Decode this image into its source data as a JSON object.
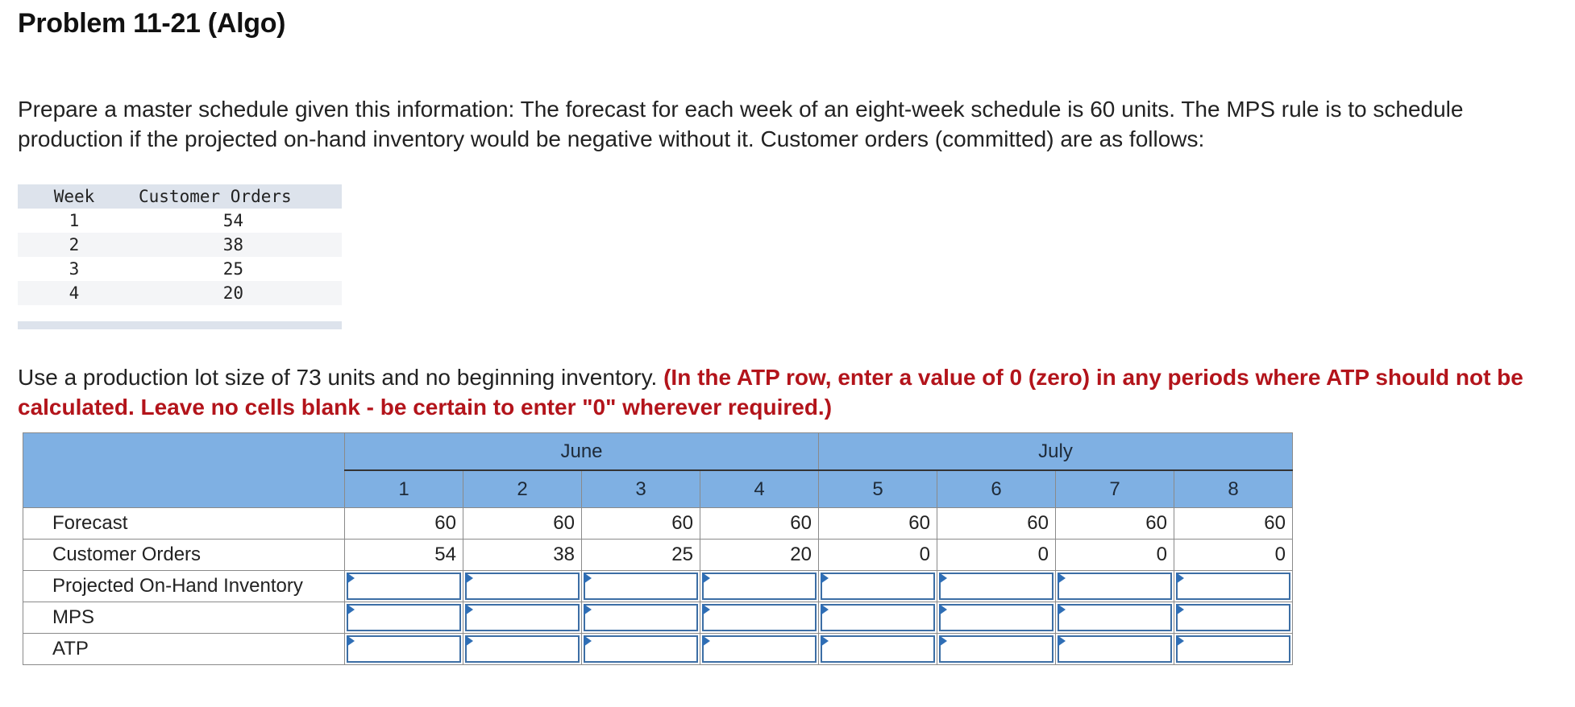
{
  "title": "Problem 11-21 (Algo)",
  "intro": "Prepare a master schedule given this information: The forecast for each week of an eight-week schedule is 60 units. The MPS rule is to schedule production if the projected on-hand inventory would be negative without it. Customer orders (committed) are as follows:",
  "orders_table": {
    "headers": [
      "Week",
      "Customer Orders"
    ],
    "rows": [
      {
        "week": "1",
        "orders": "54"
      },
      {
        "week": "2",
        "orders": "38"
      },
      {
        "week": "3",
        "orders": "25"
      },
      {
        "week": "4",
        "orders": "20"
      }
    ]
  },
  "instructions": {
    "plain": "Use a production lot size of 73 units and no beginning inventory. ",
    "emphasis": "(In the ATP row, enter a value of 0 (zero) in any periods where ATP should not be calculated. Leave no cells blank - be certain to enter \"0\" wherever required.)"
  },
  "grid": {
    "months": [
      "June",
      "July"
    ],
    "weeks": [
      "1",
      "2",
      "3",
      "4",
      "5",
      "6",
      "7",
      "8"
    ],
    "rows": {
      "forecast": {
        "label": "Forecast",
        "values": [
          "60",
          "60",
          "60",
          "60",
          "60",
          "60",
          "60",
          "60"
        ]
      },
      "orders": {
        "label": "Customer Orders",
        "values": [
          "54",
          "38",
          "25",
          "20",
          "0",
          "0",
          "0",
          "0"
        ]
      },
      "poh": {
        "label": "Projected On-Hand Inventory",
        "inputs": [
          "",
          "",
          "",
          "",
          "",
          "",
          "",
          ""
        ]
      },
      "mps": {
        "label": "MPS",
        "inputs": [
          "",
          "",
          "",
          "",
          "",
          "",
          "",
          ""
        ]
      },
      "atp": {
        "label": "ATP",
        "inputs": [
          "",
          "",
          "",
          "",
          "",
          "",
          "",
          ""
        ]
      }
    }
  },
  "colors": {
    "header_blue": "#7fb0e3",
    "emphasis_red": "#b3141b",
    "input_border": "#3c6ea5"
  }
}
